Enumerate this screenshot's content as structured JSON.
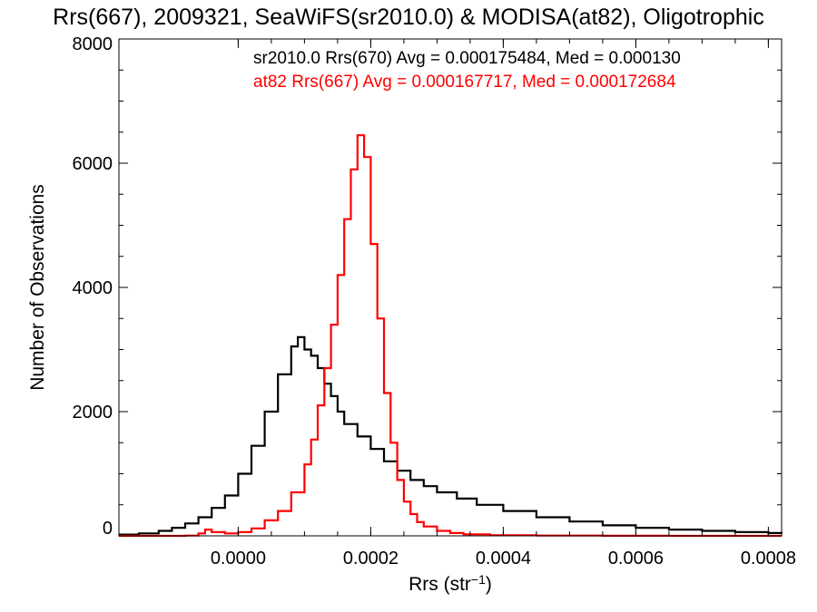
{
  "chart_data": {
    "type": "line",
    "title": "Rrs(667), 2009321, SeaWiFS(sr2010.0) & MODISA(at82), Oligotrophic",
    "xlabel": "Rrs (str",
    "xlabel_superscript": "−1",
    "xlabel_suffix": ")",
    "ylabel": "Number of Observations",
    "xlim": [
      -0.00018,
      0.00082
    ],
    "ylim": [
      0,
      8000
    ],
    "x_ticks": [
      0.0,
      0.0002,
      0.0004,
      0.0006,
      0.0008
    ],
    "x_tick_labels": [
      "0.0000",
      "0.0002",
      "0.0004",
      "0.0006",
      "0.0008"
    ],
    "y_ticks": [
      0,
      2000,
      4000,
      6000,
      8000
    ],
    "y_tick_labels": [
      "0",
      "2000",
      "4000",
      "6000",
      "8000"
    ],
    "grid": false,
    "legend_position": "top-right",
    "series": [
      {
        "name": "sr2010.0 Rrs(670) Avg = 0.000175484, Med = 0.000130",
        "color": "#000000",
        "style": "step",
        "x": [
          -0.00018,
          -0.00015,
          -0.00012,
          -0.0001,
          -8e-05,
          -6e-05,
          -4e-05,
          -2e-05,
          0.0,
          2e-05,
          4e-05,
          6e-05,
          8e-05,
          9e-05,
          0.0001,
          0.00011,
          0.00012,
          0.00013,
          0.00014,
          0.00015,
          0.00016,
          0.00018,
          0.0002,
          0.00022,
          0.00024,
          0.00026,
          0.00028,
          0.0003,
          0.00033,
          0.00036,
          0.0004,
          0.00045,
          0.0005,
          0.00055,
          0.0006,
          0.00065,
          0.0007,
          0.00075,
          0.0008,
          0.00082
        ],
        "y": [
          20,
          40,
          80,
          130,
          200,
          300,
          450,
          650,
          1000,
          1450,
          2000,
          2600,
          3050,
          3200,
          3000,
          2900,
          2700,
          2450,
          2250,
          2000,
          1800,
          1600,
          1400,
          1200,
          1050,
          900,
          800,
          700,
          600,
          500,
          400,
          300,
          230,
          170,
          130,
          100,
          80,
          60,
          45,
          40
        ]
      },
      {
        "name": "at82 Rrs(667) Avg = 0.000167717, Med = 0.000172684",
        "color": "#ff0000",
        "style": "step",
        "x": [
          -0.00018,
          -0.00012,
          -8e-05,
          -6e-05,
          -5e-05,
          -4e-05,
          -2e-05,
          0.0,
          2e-05,
          4e-05,
          6e-05,
          8e-05,
          0.0001,
          0.00011,
          0.00012,
          0.00013,
          0.00014,
          0.00015,
          0.00016,
          0.00017,
          0.00018,
          0.00019,
          0.0002,
          0.00021,
          0.00022,
          0.00023,
          0.00024,
          0.00025,
          0.00026,
          0.00027,
          0.00028,
          0.0003,
          0.00032,
          0.00034,
          0.00038,
          0.00045,
          0.00055,
          0.00065,
          0.00075,
          0.00082
        ],
        "y": [
          0,
          0,
          5,
          40,
          100,
          60,
          40,
          60,
          120,
          250,
          400,
          700,
          1150,
          1550,
          2100,
          2700,
          3400,
          4200,
          5100,
          5900,
          6450,
          6100,
          4700,
          3500,
          2300,
          1500,
          900,
          550,
          350,
          220,
          150,
          80,
          45,
          25,
          10,
          5,
          2,
          0,
          0,
          0
        ]
      }
    ]
  }
}
